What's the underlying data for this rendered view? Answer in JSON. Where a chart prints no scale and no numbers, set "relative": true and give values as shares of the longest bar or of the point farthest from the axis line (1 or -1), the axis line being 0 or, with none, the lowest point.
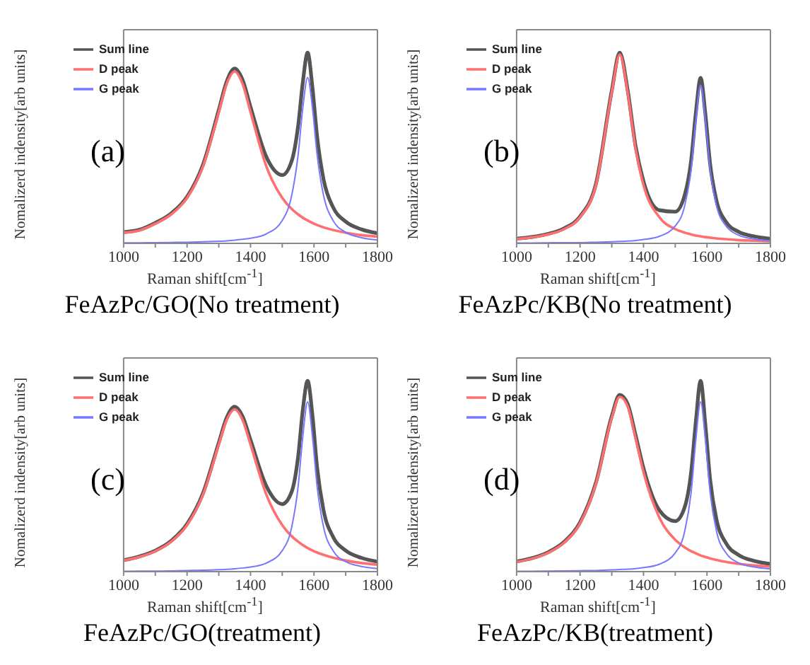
{
  "chart_data": [
    {
      "type": "line",
      "title": "FeAzPc/GO(No treatment)",
      "xlabel": "Raman shift[cm$^{-1}$]",
      "ylabel": "Nomalizerd indensity[arb units]",
      "annotations": [
        "(a)"
      ],
      "relative": true,
      "legend": "top left",
      "xlim": [
        1000,
        1800
      ],
      "xticks": [
        1000,
        {
          "value": 1100,
          "label": null
        },
        1200,
        {
          "value": 1300,
          "label": null
        },
        1400,
        {
          "value": 1500,
          "label": null
        },
        1600,
        {
          "value": 1700,
          "label": null
        },
        1800
      ],
      "x": [
        1000,
        1050,
        1100,
        1150,
        1200,
        1250,
        1300,
        1325,
        1350,
        1375,
        1400,
        1450,
        1500,
        1530,
        1550,
        1565,
        1580,
        1595,
        1610,
        1630,
        1660,
        1700,
        1750,
        1800
      ],
      "series": [
        {
          "name": "Sum line",
          "color": "#555555",
          "values": [
            0.059,
            0.071,
            0.107,
            0.157,
            0.244,
            0.411,
            0.699,
            0.849,
            0.917,
            0.857,
            0.715,
            0.453,
            0.358,
            0.433,
            0.615,
            0.847,
            1.0,
            0.82,
            0.559,
            0.337,
            0.19,
            0.114,
            0.073,
            0.053
          ]
        },
        {
          "name": "D peak",
          "color": "#ff6f6f",
          "values": [
            0.056,
            0.068,
            0.103,
            0.152,
            0.238,
            0.403,
            0.688,
            0.836,
            0.9,
            0.836,
            0.688,
            0.403,
            0.238,
            0.18,
            0.152,
            0.134,
            0.12,
            0.107,
            0.096,
            0.084,
            0.07,
            0.056,
            0.043,
            0.035
          ]
        },
        {
          "name": "G peak",
          "color": "#7777ff",
          "values": [
            0.003,
            0.003,
            0.004,
            0.005,
            0.006,
            0.008,
            0.011,
            0.013,
            0.017,
            0.021,
            0.027,
            0.05,
            0.12,
            0.253,
            0.463,
            0.713,
            0.87,
            0.713,
            0.463,
            0.253,
            0.12,
            0.058,
            0.03,
            0.018
          ]
        }
      ]
    },
    {
      "type": "line",
      "title": "FeAzPc/KB(No treatment)",
      "xlabel": "Raman shift[cm$^{-1}$]",
      "ylabel": "Nomalizerd indensity[arb units]",
      "annotations": [
        "(b)"
      ],
      "relative": true,
      "legend": "top left",
      "xlim": [
        1000,
        1800
      ],
      "xticks": [
        1000,
        {
          "value": 1100,
          "label": null
        },
        1200,
        {
          "value": 1300,
          "label": null
        },
        1400,
        {
          "value": 1500,
          "label": null
        },
        1600,
        {
          "value": 1700,
          "label": null
        },
        1800
      ],
      "x": [
        1000,
        1050,
        1100,
        1150,
        1200,
        1250,
        1300,
        1325,
        1350,
        1375,
        1400,
        1450,
        1500,
        1530,
        1550,
        1565,
        1580,
        1595,
        1610,
        1630,
        1660,
        1700,
        1750,
        1800
      ],
      "series": [
        {
          "name": "Sum line",
          "color": "#555555",
          "values": [
            0.025,
            0.034,
            0.05,
            0.079,
            0.141,
            0.311,
            0.8,
            1.0,
            0.804,
            0.51,
            0.325,
            0.174,
            0.166,
            0.254,
            0.433,
            0.686,
            0.867,
            0.678,
            0.416,
            0.224,
            0.113,
            0.06,
            0.036,
            0.024
          ]
        },
        {
          "name": "D peak",
          "color": "#ff6f6f",
          "values": [
            0.023,
            0.032,
            0.047,
            0.075,
            0.137,
            0.305,
            0.792,
            0.99,
            0.792,
            0.495,
            0.305,
            0.137,
            0.075,
            0.056,
            0.047,
            0.041,
            0.037,
            0.033,
            0.03,
            0.026,
            0.022,
            0.017,
            0.014,
            0.011
          ]
        },
        {
          "name": "G peak",
          "color": "#7777ff",
          "values": [
            0.002,
            0.002,
            0.003,
            0.004,
            0.004,
            0.006,
            0.008,
            0.01,
            0.012,
            0.015,
            0.02,
            0.037,
            0.091,
            0.198,
            0.386,
            0.645,
            0.83,
            0.645,
            0.386,
            0.198,
            0.091,
            0.043,
            0.022,
            0.013
          ]
        }
      ]
    },
    {
      "type": "line",
      "title": "FeAzPc/GO(treatment)",
      "xlabel": "Raman shift[cm$^{-1}$]",
      "ylabel": "Nomalizerd indensity[arb units]",
      "annotations": [
        "(c)"
      ],
      "relative": true,
      "legend": "top left",
      "xlim": [
        1000,
        1800
      ],
      "xticks": [
        1000,
        {
          "value": 1100,
          "label": null
        },
        1200,
        {
          "value": 1300,
          "label": null
        },
        1400,
        {
          "value": 1500,
          "label": null
        },
        1600,
        {
          "value": 1700,
          "label": null
        },
        1800
      ],
      "x": [
        1000,
        1050,
        1100,
        1150,
        1200,
        1250,
        1300,
        1325,
        1350,
        1375,
        1400,
        1450,
        1500,
        1530,
        1550,
        1565,
        1580,
        1595,
        1610,
        1630,
        1660,
        1700,
        1750,
        1800
      ],
      "series": [
        {
          "name": "Sum line",
          "color": "#555555",
          "values": [
            0.06,
            0.08,
            0.11,
            0.161,
            0.25,
            0.41,
            0.676,
            0.807,
            0.865,
            0.814,
            0.69,
            0.448,
            0.354,
            0.42,
            0.602,
            0.851,
            1.0,
            0.823,
            0.545,
            0.323,
            0.183,
            0.11,
            0.072,
            0.052
          ]
        },
        {
          "name": "D peak",
          "color": "#ff6f6f",
          "values": [
            0.058,
            0.077,
            0.107,
            0.157,
            0.244,
            0.403,
            0.666,
            0.795,
            0.85,
            0.795,
            0.666,
            0.403,
            0.244,
            0.185,
            0.157,
            0.139,
            0.124,
            0.111,
            0.1,
            0.088,
            0.073,
            0.058,
            0.045,
            0.036
          ]
        },
        {
          "name": "G peak",
          "color": "#7777ff",
          "values": [
            0.002,
            0.003,
            0.003,
            0.004,
            0.006,
            0.007,
            0.01,
            0.012,
            0.015,
            0.019,
            0.024,
            0.045,
            0.11,
            0.235,
            0.445,
            0.712,
            0.89,
            0.712,
            0.445,
            0.235,
            0.11,
            0.052,
            0.027,
            0.016
          ]
        }
      ]
    },
    {
      "type": "line",
      "title": "FeAzPc/KB(treatment)",
      "xlabel": "Raman shift[cm$^{-1}$]",
      "ylabel": "Nomalizerd indensity[arb units]",
      "annotations": [
        "(d)"
      ],
      "relative": true,
      "legend": "top left",
      "xlim": [
        1000,
        1800
      ],
      "xticks": [
        1000,
        {
          "value": 1100,
          "label": null
        },
        1200,
        {
          "value": 1300,
          "label": null
        },
        1400,
        {
          "value": 1500,
          "label": null
        },
        1600,
        {
          "value": 1700,
          "label": null
        },
        1800
      ],
      "x": [
        1000,
        1050,
        1100,
        1150,
        1200,
        1250,
        1300,
        1325,
        1350,
        1375,
        1400,
        1450,
        1500,
        1530,
        1550,
        1565,
        1580,
        1595,
        1610,
        1630,
        1660,
        1700,
        1750,
        1800
      ],
      "series": [
        {
          "name": "Sum line",
          "color": "#555555",
          "values": [
            0.053,
            0.071,
            0.102,
            0.156,
            0.258,
            0.466,
            0.815,
            0.927,
            0.879,
            0.715,
            0.542,
            0.322,
            0.265,
            0.339,
            0.521,
            0.788,
            1.0,
            0.769,
            0.483,
            0.273,
            0.149,
            0.087,
            0.056,
            0.04
          ]
        },
        {
          "name": "D peak",
          "color": "#ff6f6f",
          "values": [
            0.051,
            0.069,
            0.099,
            0.152,
            0.253,
            0.46,
            0.806,
            0.916,
            0.866,
            0.699,
            0.521,
            0.283,
            0.167,
            0.127,
            0.107,
            0.096,
            0.085,
            0.077,
            0.069,
            0.061,
            0.051,
            0.041,
            0.032,
            0.026
          ]
        },
        {
          "name": "G peak",
          "color": "#7777ff",
          "values": [
            0.002,
            0.002,
            0.003,
            0.004,
            0.005,
            0.006,
            0.009,
            0.011,
            0.013,
            0.016,
            0.021,
            0.039,
            0.098,
            0.212,
            0.414,
            0.692,
            0.89,
            0.692,
            0.414,
            0.212,
            0.098,
            0.046,
            0.024,
            0.014
          ]
        }
      ]
    }
  ]
}
